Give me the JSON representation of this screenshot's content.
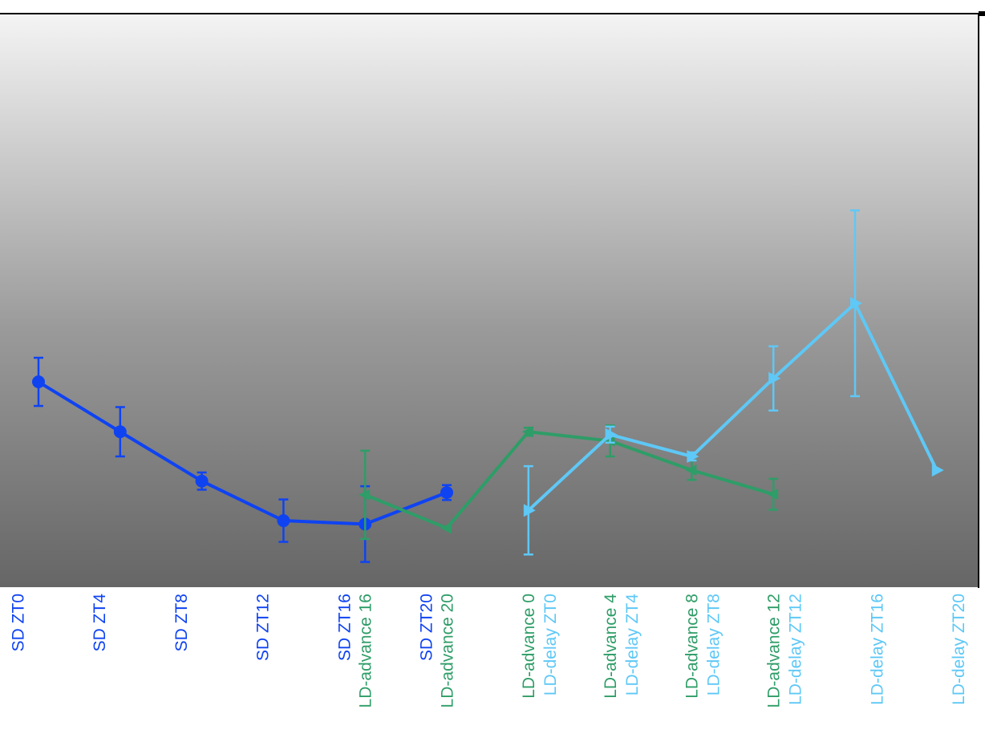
{
  "chart_data": {
    "type": "line",
    "ylim": [
      0,
      100
    ],
    "series": [
      {
        "color": "#0f43f2",
        "marker": "circle",
        "categories": [
          "SD ZT0",
          "SD ZT4",
          "SD ZT8",
          "SD ZT12",
          "SD ZT16",
          "SD ZT20",
          null,
          null,
          null,
          null,
          null,
          null
        ],
        "values": [
          35.8,
          27.1,
          18.5,
          11.6,
          11.0,
          16.5,
          null,
          null,
          null,
          null,
          null,
          null
        ],
        "errors": [
          4.2,
          4.3,
          1.5,
          3.7,
          6.6,
          1.3,
          null,
          null,
          null,
          null,
          null,
          null
        ]
      },
      {
        "color": "#2e9d67",
        "marker": "triangle-left",
        "categories": [
          null,
          null,
          null,
          null,
          "LD-advance 16",
          "LD-advance 20",
          "LD-advance 0",
          "LD-advance 4",
          "LD-advance 8",
          "LD-advance 12",
          null,
          null
        ],
        "values": [
          null,
          null,
          null,
          null,
          16.1,
          10.3,
          27.1,
          25.5,
          20.4,
          16.2,
          null,
          null
        ],
        "errors": [
          null,
          null,
          null,
          null,
          7.7,
          0,
          0.7,
          2.7,
          1.7,
          2.7,
          null,
          null
        ]
      },
      {
        "color": "#5ec8f6",
        "marker": "triangle-right",
        "categories": [
          null,
          null,
          null,
          null,
          null,
          null,
          "LD-delay ZT0",
          "LD-delay ZT4",
          "LD-delay ZT8",
          "LD-delay ZT12",
          "LD-delay ZT16",
          "LD-delay ZT20"
        ],
        "values": [
          null,
          null,
          null,
          null,
          null,
          null,
          13.4,
          26.6,
          22.8,
          36.4,
          49.5,
          20.4
        ],
        "errors": [
          null,
          null,
          null,
          null,
          null,
          null,
          7.7,
          1.4,
          0.7,
          5.6,
          16.2,
          0
        ]
      }
    ]
  }
}
